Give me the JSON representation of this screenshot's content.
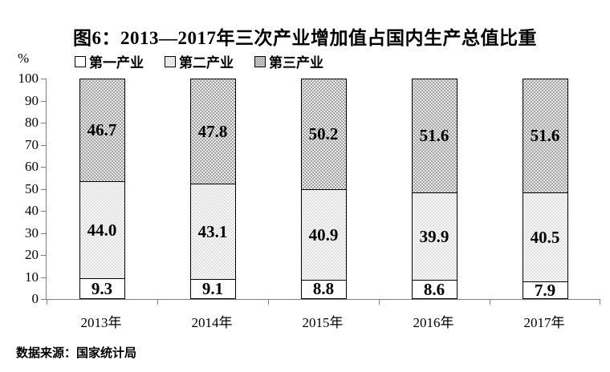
{
  "title": "图6：2013—2017年三次产业增加值占国内生产总值比重",
  "y_axis_unit": "%",
  "source": "数据来源：国家统计局",
  "colors": {
    "primary": "#ffffff",
    "secondary": "#e0e0e0",
    "tertiary": "#a3a3a3",
    "axis": "#808080",
    "border": "#000000",
    "text": "#000000"
  },
  "chart_data": {
    "type": "bar",
    "stacked": true,
    "title": "图6：2013—2017年三次产业增加值占国内生产总值比重",
    "categories": [
      "2013年",
      "2014年",
      "2015年",
      "2016年",
      "2017年"
    ],
    "series": [
      {
        "name": "第一产业",
        "values": [
          9.3,
          9.1,
          8.8,
          8.6,
          7.9
        ]
      },
      {
        "name": "第二产业",
        "values": [
          44.0,
          43.1,
          40.9,
          39.9,
          40.5
        ]
      },
      {
        "name": "第三产业",
        "values": [
          46.7,
          47.8,
          50.2,
          51.6,
          51.6
        ]
      }
    ],
    "xlabel": "",
    "ylabel": "%",
    "ylim": [
      0,
      100
    ],
    "yticks": [
      0,
      10,
      20,
      30,
      40,
      50,
      60,
      70,
      80,
      90,
      100
    ],
    "grid": false,
    "legend_position": "top",
    "value_labels": true,
    "value_decimals": 1
  }
}
